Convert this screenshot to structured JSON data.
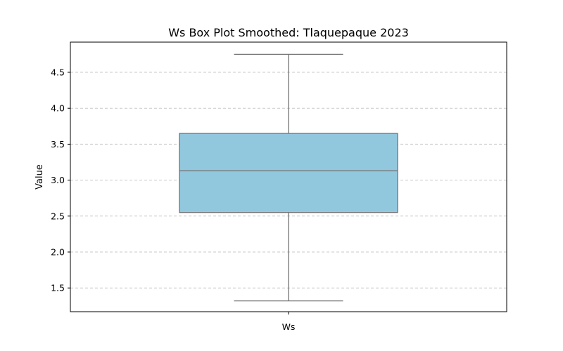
{
  "chart_data": {
    "type": "box",
    "title": "Ws Box Plot Smoothed: Tlaquepaque 2023",
    "xlabel": "",
    "ylabel": "Value",
    "categories": [
      "Ws"
    ],
    "boxes": [
      {
        "category": "Ws",
        "whisker_low": 1.32,
        "q1": 2.55,
        "median": 3.13,
        "q3": 3.65,
        "whisker_high": 4.75
      }
    ],
    "ylim": [
      1.17,
      4.92
    ],
    "yticks": [
      1.5,
      2.0,
      2.5,
      3.0,
      3.5,
      4.0,
      4.5
    ],
    "ytick_labels": [
      "1.5",
      "2.0",
      "2.5",
      "3.0",
      "3.5",
      "4.0",
      "4.5"
    ],
    "grid": {
      "axis": "y",
      "style": "dashed"
    },
    "colors": {
      "box_fill": "#92c8de",
      "box_edge": "#737373",
      "grid": "#c8c8c8",
      "axes": "#000000"
    }
  }
}
